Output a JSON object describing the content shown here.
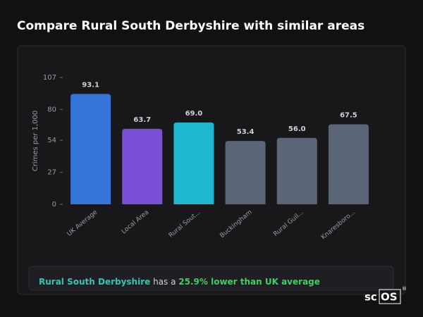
{
  "chart_data": {
    "type": "bar",
    "title": "Compare Rural South Derbyshire with similar areas",
    "y_label": "Crimes per 1,000",
    "categories": [
      "UK Average",
      "Local Area",
      "Rural Sout...",
      "Buckingham",
      "Rural Guil...",
      "Knaresboro..."
    ],
    "values": [
      93.1,
      63.7,
      69,
      53.4,
      56,
      67.5
    ],
    "value_labels": [
      "93.1",
      "63.7",
      "69.0",
      "53.4",
      "56.0",
      "67.5"
    ],
    "colors": [
      "#3574d8",
      "#7a4fd6",
      "#1fb6cf",
      "#5a6577",
      "#5a6577",
      "#5a6577"
    ],
    "ylim": [
      0,
      107
    ],
    "yticks": [
      0,
      27,
      54,
      80,
      107
    ],
    "summary": {
      "area": "Rural South Derbyshire",
      "text": " has a ",
      "highlight": "25.9% lower than UK average"
    },
    "brand": [
      "sc",
      "OS"
    ],
    "brand_mark": "®"
  }
}
